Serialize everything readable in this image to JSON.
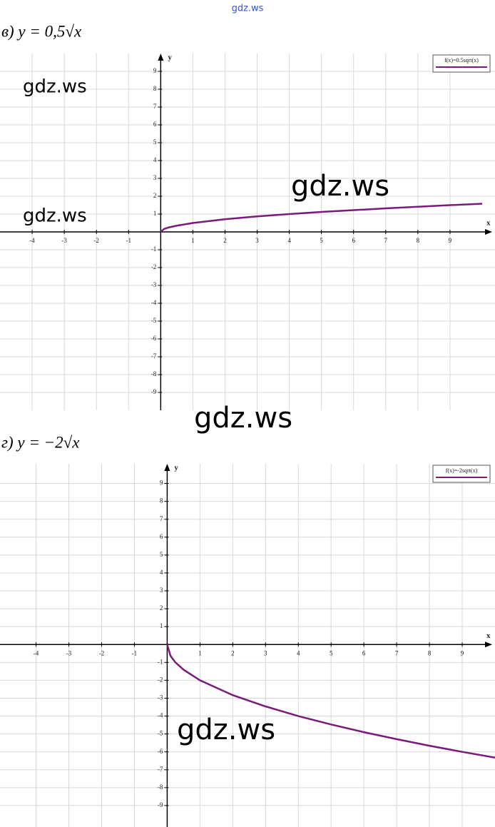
{
  "site": "gdz.ws",
  "watermarks": [
    "gdz.ws",
    "gdz.ws",
    "gdz.ws",
    "gdz.ws",
    "gdz.ws"
  ],
  "chart_data": [
    {
      "type": "line",
      "title": "в) y = 0,5√x",
      "legend": "f(x)=0.5sqrt(x)",
      "x_label": "x",
      "y_label": "y",
      "x": [
        0,
        0.1,
        0.25,
        0.5,
        1,
        2,
        3,
        4,
        5,
        6,
        7,
        8,
        9,
        10
      ],
      "series": [
        {
          "name": "f(x)=0.5sqrt(x)",
          "color": "#7b1a7b",
          "values": [
            0,
            0.16,
            0.25,
            0.35,
            0.5,
            0.71,
            0.87,
            1,
            1.12,
            1.22,
            1.32,
            1.41,
            1.5,
            1.58
          ]
        }
      ],
      "xlim": [
        -5,
        10.4
      ],
      "ylim": [
        -10,
        10
      ],
      "xticks": [
        -4,
        -3,
        -2,
        -1,
        1,
        2,
        3,
        4,
        5,
        6,
        7,
        8,
        9
      ],
      "yticks": [
        -9,
        -8,
        -7,
        -6,
        -5,
        -4,
        -3,
        -2,
        -1,
        1,
        2,
        3,
        4,
        5,
        6,
        7,
        8,
        9
      ],
      "grid": true
    },
    {
      "type": "line",
      "title": "г) y = −2√x",
      "legend": "f(x)=-2sqrt(x)",
      "x_label": "x",
      "y_label": "y",
      "x": [
        0,
        0.1,
        0.25,
        0.5,
        1,
        2,
        3,
        4,
        5,
        6,
        7,
        8,
        9,
        10
      ],
      "series": [
        {
          "name": "f(x)=-2sqrt(x)",
          "color": "#7b1a7b",
          "values": [
            0,
            -0.63,
            -1,
            -1.41,
            -2,
            -2.83,
            -3.46,
            -4,
            -4.47,
            -4.9,
            -5.29,
            -5.66,
            -6,
            -6.32
          ]
        }
      ],
      "xlim": [
        -5.1,
        10
      ],
      "ylim": [
        -10.2,
        10.1
      ],
      "xticks": [
        -4,
        -3,
        -2,
        -1,
        1,
        2,
        3,
        4,
        5,
        6,
        7,
        8,
        9
      ],
      "yticks": [
        -9,
        -8,
        -7,
        -6,
        -5,
        -4,
        -3,
        -2,
        -1,
        1,
        2,
        3,
        4,
        5,
        6,
        7,
        8,
        9
      ],
      "grid": true
    }
  ]
}
